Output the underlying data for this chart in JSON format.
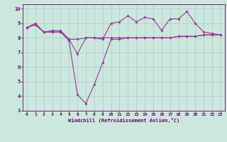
{
  "xlabel": "Windchill (Refroidissement éolien,°C)",
  "background_color": "#cce8dd",
  "grid_color": "#aaccbb",
  "line_color": "#993399",
  "spine_color": "#660066",
  "xlim": [
    -0.5,
    23.5
  ],
  "ylim": [
    3,
    10.3
  ],
  "xticks": [
    0,
    1,
    2,
    3,
    4,
    5,
    6,
    7,
    8,
    9,
    10,
    11,
    12,
    13,
    14,
    15,
    16,
    17,
    18,
    19,
    20,
    21,
    22,
    23
  ],
  "yticks": [
    3,
    4,
    5,
    6,
    7,
    8,
    9,
    10
  ],
  "series1_y": [
    8.7,
    9.0,
    8.4,
    8.5,
    8.5,
    7.9,
    6.9,
    8.0,
    8.0,
    7.9,
    9.0,
    9.1,
    9.5,
    9.1,
    9.4,
    9.3,
    8.5,
    9.3,
    9.3,
    9.8,
    9.0,
    8.4,
    8.3,
    8.2
  ],
  "series2_y": [
    8.7,
    8.9,
    8.4,
    8.4,
    8.4,
    7.8,
    4.1,
    3.5,
    4.8,
    6.3,
    7.9,
    7.9,
    8.0,
    8.0,
    8.0,
    8.0,
    8.0,
    8.0,
    8.1,
    8.1,
    8.1,
    8.2,
    8.2,
    8.2
  ],
  "series3_y": [
    8.7,
    8.9,
    8.4,
    8.4,
    8.4,
    7.9,
    7.9,
    8.0,
    8.0,
    8.0,
    8.0,
    8.0,
    8.0,
    8.0,
    8.0,
    8.0,
    8.0,
    8.0,
    8.1,
    8.1,
    8.1,
    8.2,
    8.2,
    8.2
  ],
  "tick_fontsize": 4.5,
  "xlabel_fontsize": 5.0,
  "linewidth": 0.8,
  "markersize": 2.0
}
